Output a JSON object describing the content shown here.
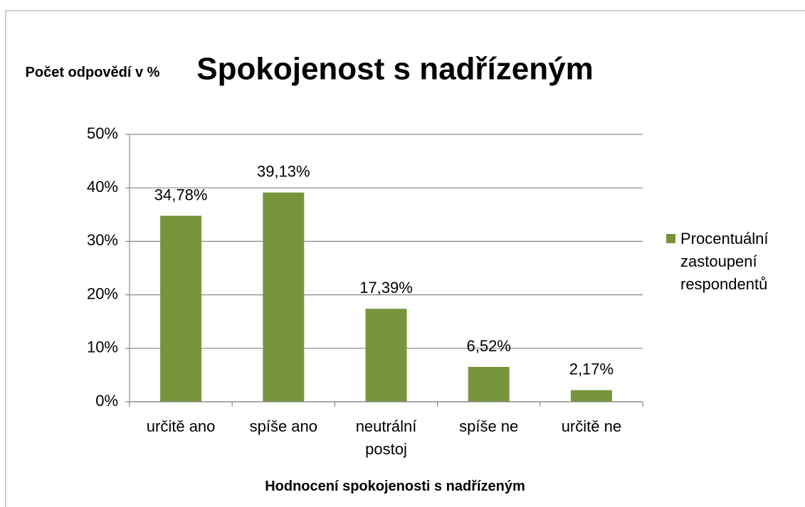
{
  "chart_data": {
    "type": "bar",
    "title": "Spokojenost s nadřízeným",
    "y_axis_label": "Počet odpovědí v %",
    "x_axis_label": "Hodnocení spokojenosti s nadřízeným",
    "categories": [
      "určitě ano",
      "spíše ano",
      "neutrální postoj",
      "spíše ne",
      "určitě ne"
    ],
    "series": [
      {
        "name": "Procentuální zastoupení respondentů",
        "color": "#77963b",
        "values": [
          34.78,
          39.13,
          17.39,
          6.52,
          2.17
        ],
        "value_labels": [
          "34,78%",
          "39,13%",
          "17,39%",
          "6,52%",
          "2,17%"
        ]
      }
    ],
    "ylim": [
      0,
      50
    ],
    "yticks": [
      {
        "value": 0,
        "label": "0%"
      },
      {
        "value": 10,
        "label": "10%"
      },
      {
        "value": 20,
        "label": "20%"
      },
      {
        "value": 30,
        "label": "30%"
      },
      {
        "value": 40,
        "label": "40%"
      },
      {
        "value": 50,
        "label": "50%"
      }
    ],
    "grid": true,
    "legend": "right"
  }
}
